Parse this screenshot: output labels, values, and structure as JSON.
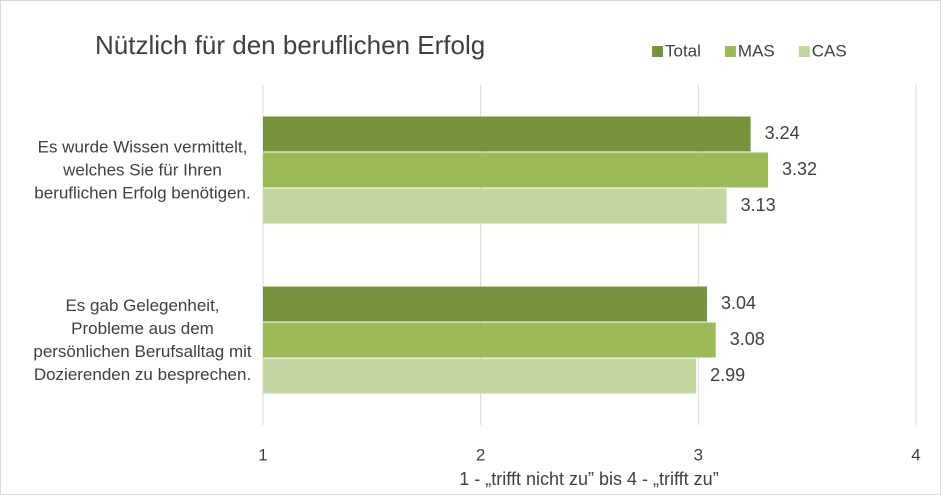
{
  "chart_data": {
    "type": "hbar",
    "title": "Nützlich für den beruflichen Erfolg",
    "categories": [
      "Es wurde Wissen vermittelt, welches Sie für Ihren beruflichen Erfolg benötigen.",
      "Es gab Gelegenheit, Probleme aus dem persönlichen Berufsalltag mit Dozierenden zu besprechen."
    ],
    "series": [
      {
        "name": "Total",
        "color": "#77933c",
        "values": [
          3.24,
          3.04
        ]
      },
      {
        "name": "MAS",
        "color": "#9bbb59",
        "values": [
          3.32,
          3.08
        ]
      },
      {
        "name": "CAS",
        "color": "#c4d6a0",
        "values": [
          3.13,
          2.99
        ]
      }
    ],
    "xlim": [
      1,
      4
    ],
    "xticks": [
      1,
      2,
      3,
      4
    ],
    "grid": true,
    "legend": "top-right",
    "xlabel": "1 - „trifft nicht zu” bis 4 - „trifft zu”"
  }
}
